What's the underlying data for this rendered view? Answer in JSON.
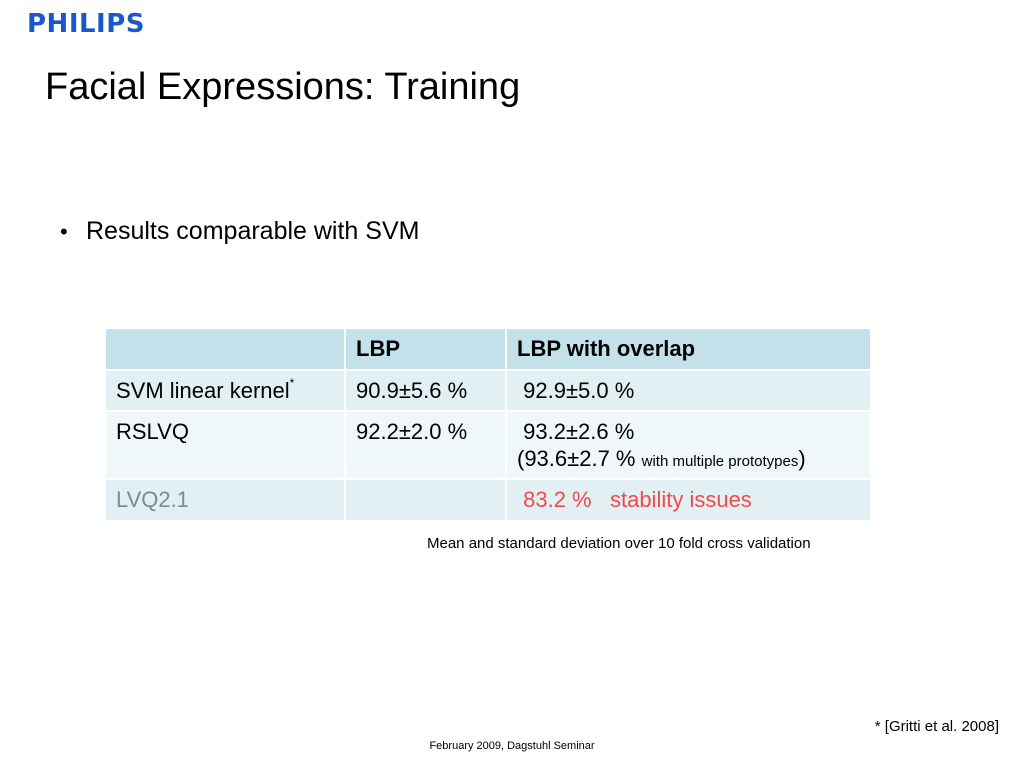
{
  "brand": {
    "logo_text": "PHILIPS",
    "color": "#1a58c9"
  },
  "slide": {
    "title": "Facial Expressions: Training",
    "bullets": [
      "Results comparable with SVM"
    ]
  },
  "table": {
    "headers": [
      "",
      "LBP",
      "LBP with overlap"
    ],
    "rows": [
      {
        "label": "SVM linear kernel",
        "label_sup": "*",
        "lbp": "90.9±5.6 %",
        "overlap": "92.9±5.0 %"
      },
      {
        "label": "RSLVQ",
        "lbp": "92.2±2.0 %",
        "overlap": "93.2±2.6 %",
        "overlap_alt_value": "(93.6±2.7 %",
        "overlap_alt_note": "with multiple prototypes",
        "overlap_alt_close": ")"
      },
      {
        "label": "LVQ2.1",
        "lbp": "",
        "overlap": "83.2 %",
        "overlap_note": "stability issues"
      }
    ],
    "colors": {
      "header_bg": "#c3e1ea",
      "row_bg_a": "#e2eff3",
      "row_bg_b": "#f0f7f9",
      "muted": "#7f8a90",
      "alert": "#f0494c"
    }
  },
  "caption": "Mean and standard deviation over 10 fold cross validation",
  "reference": "* [Gritti et al. 2008]",
  "footer": "February 2009, Dagstuhl Seminar"
}
